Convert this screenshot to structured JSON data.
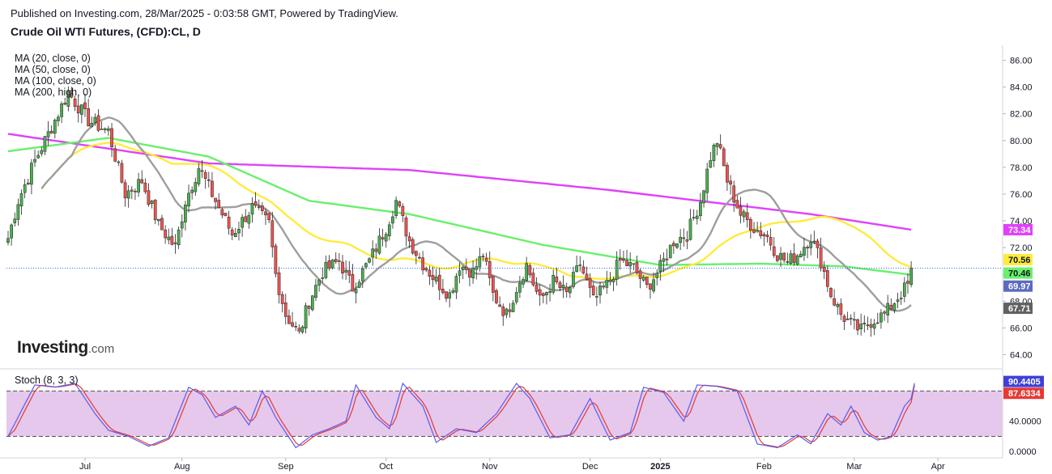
{
  "header": {
    "published": "Published on Investing.com, 28/Mar/2025 - 0:03:58 GMT, Powered by TradingView.",
    "symbol": "Crude Oil WTI Futures, (CFD):CL, D"
  },
  "legend": {
    "ma20": "MA (20, close, 0)",
    "ma50": "MA (50, close, 0)",
    "ma100": "MA (100, close, 0)",
    "ma200": "MA (200, high, 0)"
  },
  "logo": {
    "brand": "Investing",
    "suffix": ".com"
  },
  "colors": {
    "up": "#4caf50",
    "down": "#ef5350",
    "ma20": "#9e9e9e",
    "ma50": "#ffeb3b",
    "ma100": "#69f06b",
    "ma200": "#e040fb",
    "stochK": "#5b5bf0",
    "stochD": "#e53935",
    "stochBand": "#e1bee7"
  },
  "chart_data": [
    {
      "type": "candlestick",
      "title": "Crude Oil WTI Futures, (CFD):CL, D",
      "x_labels": [
        "Jul",
        "Aug",
        "Sep",
        "Oct",
        "Nov",
        "Dec",
        "2025",
        "Feb",
        "Mar",
        "Apr"
      ],
      "y_ticks": [
        "86.00",
        "84.00",
        "82.00",
        "80.00",
        "78.00",
        "76.00",
        "74.00",
        "72.00",
        "70.00",
        "68.00",
        "66.00",
        "64.00"
      ],
      "ylim": [
        63,
        87
      ],
      "last_price_line": 70.46,
      "price_keypoints": [
        [
          0,
          72.7
        ],
        [
          3,
          75.5
        ],
        [
          8,
          78.5
        ],
        [
          12,
          80.5
        ],
        [
          18,
          83.6
        ],
        [
          24,
          81.5
        ],
        [
          30,
          80.7
        ],
        [
          35,
          76
        ],
        [
          40,
          77
        ],
        [
          45,
          73.7
        ],
        [
          50,
          72
        ],
        [
          53,
          75.5
        ],
        [
          57,
          78
        ],
        [
          62,
          75.5
        ],
        [
          67,
          73
        ],
        [
          73,
          75
        ],
        [
          78,
          73.8
        ],
        [
          80,
          70
        ],
        [
          83,
          67
        ],
        [
          87,
          65.5
        ],
        [
          90,
          68
        ],
        [
          94,
          70.2
        ],
        [
          99,
          71
        ],
        [
          103,
          69
        ],
        [
          108,
          71
        ],
        [
          113,
          73.5
        ],
        [
          116,
          75.5
        ],
        [
          120,
          72.5
        ],
        [
          124,
          70.8
        ],
        [
          128,
          69.5
        ],
        [
          132,
          68.5
        ],
        [
          135,
          70.7
        ],
        [
          139,
          70.2
        ],
        [
          142,
          71.5
        ],
        [
          145,
          68.5
        ],
        [
          149,
          67
        ],
        [
          152,
          69
        ],
        [
          155,
          70.7
        ],
        [
          159,
          68
        ],
        [
          163,
          69.5
        ],
        [
          167,
          68.5
        ],
        [
          171,
          70.8
        ],
        [
          175,
          68
        ],
        [
          179,
          69.2
        ],
        [
          183,
          71
        ],
        [
          187,
          70.5
        ],
        [
          191,
          69
        ],
        [
          195,
          70.5
        ],
        [
          199,
          72.5
        ],
        [
          203,
          73
        ],
        [
          207,
          75.5
        ],
        [
          210,
          78.8
        ],
        [
          212,
          80
        ],
        [
          215,
          77
        ],
        [
          219,
          74.5
        ],
        [
          223,
          73.5
        ],
        [
          227,
          72.8
        ],
        [
          230,
          71.5
        ],
        [
          233,
          70.9
        ],
        [
          236,
          71.5
        ],
        [
          240,
          72.8
        ],
        [
          243,
          71
        ],
        [
          246,
          68.5
        ],
        [
          249,
          67
        ],
        [
          252,
          66.3
        ],
        [
          255,
          65.8
        ],
        [
          258,
          66.5
        ],
        [
          262,
          67
        ],
        [
          266,
          68.3
        ],
        [
          270,
          69.5
        ],
        [
          272,
          70.1
        ],
        [
          274,
          70.5
        ]
      ],
      "ma_endpoints": {
        "ma20": 67.71,
        "ma50": 70.56,
        "ma100": 69.97,
        "ma200": 73.34
      },
      "price_badges": [
        {
          "label": "73.34",
          "value": 73.34,
          "bg": "#e040fb",
          "fg": "#ffffff"
        },
        {
          "label": "70.56",
          "value": 70.56,
          "bg": "#ffeb3b",
          "fg": "#131722"
        },
        {
          "label": "70.46",
          "value": 70.46,
          "bg": "#69f06b",
          "fg": "#131722"
        },
        {
          "label": "69.97",
          "value": 69.97,
          "bg": "#5c6bc0",
          "fg": "#ffffff"
        },
        {
          "label": "67.71",
          "value": 67.71,
          "bg": "#616161",
          "fg": "#ffffff"
        }
      ]
    },
    {
      "type": "line",
      "title": "Stoch (8, 3, 3)",
      "y_ticks": [
        "40.0000",
        "0.0000"
      ],
      "ylim": [
        -2,
        105
      ],
      "band": [
        20,
        80
      ],
      "stoch_keypoints": [
        [
          0,
          20
        ],
        [
          8,
          88
        ],
        [
          14,
          85
        ],
        [
          20,
          90
        ],
        [
          26,
          50
        ],
        [
          30,
          28
        ],
        [
          36,
          20
        ],
        [
          42,
          7
        ],
        [
          48,
          18
        ],
        [
          54,
          85
        ],
        [
          58,
          75
        ],
        [
          62,
          45
        ],
        [
          68,
          60
        ],
        [
          72,
          35
        ],
        [
          76,
          80
        ],
        [
          80,
          45
        ],
        [
          86,
          5
        ],
        [
          91,
          22
        ],
        [
          96,
          30
        ],
        [
          101,
          40
        ],
        [
          104,
          88
        ],
        [
          110,
          45
        ],
        [
          114,
          30
        ],
        [
          118,
          90
        ],
        [
          124,
          60
        ],
        [
          128,
          12
        ],
        [
          134,
          30
        ],
        [
          140,
          25
        ],
        [
          146,
          50
        ],
        [
          152,
          90
        ],
        [
          156,
          70
        ],
        [
          162,
          18
        ],
        [
          168,
          22
        ],
        [
          174,
          70
        ],
        [
          180,
          15
        ],
        [
          186,
          25
        ],
        [
          190,
          85
        ],
        [
          196,
          78
        ],
        [
          202,
          40
        ],
        [
          206,
          88
        ],
        [
          212,
          86
        ],
        [
          218,
          80
        ],
        [
          224,
          10
        ],
        [
          230,
          5
        ],
        [
          236,
          22
        ],
        [
          240,
          10
        ],
        [
          245,
          50
        ],
        [
          249,
          35
        ],
        [
          252,
          60
        ],
        [
          256,
          25
        ],
        [
          260,
          15
        ],
        [
          264,
          20
        ],
        [
          268,
          60
        ],
        [
          272,
          80
        ],
        [
          276,
          88
        ],
        [
          280,
          90
        ]
      ],
      "price_badges": [
        {
          "label": "90.4405",
          "value": 90.4405,
          "bg": "#3f3fd8",
          "fg": "#ffffff"
        },
        {
          "label": "87.6334",
          "value": 87.6334,
          "bg": "#e53935",
          "fg": "#ffffff"
        }
      ]
    }
  ]
}
